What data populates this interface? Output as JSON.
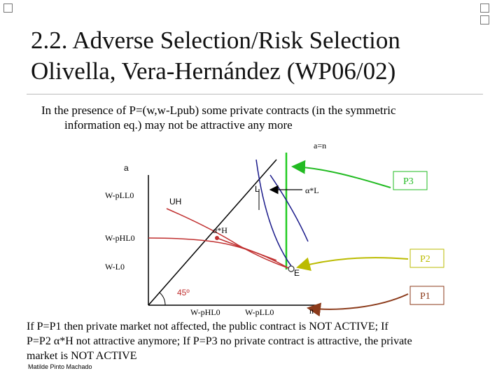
{
  "title": {
    "line1": "2.2. Adverse Selection/Risk Selection",
    "line2": "Olivella, Vera-Hernández (WP06/02)"
  },
  "intro": {
    "line1": "In the presence of P=(w,w-Lpub) some private contracts (in the symmetric",
    "line2": "information eq.) may not be attractive any more"
  },
  "diagram": {
    "top_label": "a=n",
    "y_axis_label": "a",
    "y_ticks": [
      "W-pLL0",
      "W-pHL0",
      "W-L0"
    ],
    "x_ticks": [
      "W-pHL0",
      "W-pLL0",
      "n"
    ],
    "angle_label": "45º",
    "point_L": "L",
    "point_alphaL": "α*L",
    "point_alphaH": "α*H",
    "point_E": "E",
    "curve_UH": "UH",
    "box_P3": "P3",
    "box_P2": "P2",
    "box_P1": "P1",
    "colors": {
      "diagonal": "#000000",
      "blue_curve": "#1a1a8a",
      "red_curve": "#c03030",
      "green_line": "#22cc22",
      "p3": "#22bb22",
      "p2": "#bbbb00",
      "p1": "#8b3a1a"
    }
  },
  "bottom_text": {
    "line1": "If P=P1 then private market not affected, the public contract is NOT ACTIVE; If",
    "line2": "P=P2 α*H not attractive anymore; If P=P3 no private contract is attractive, the private",
    "line3": "market is NOT ACTIVE"
  },
  "author": "Matilde Pinto Machado"
}
